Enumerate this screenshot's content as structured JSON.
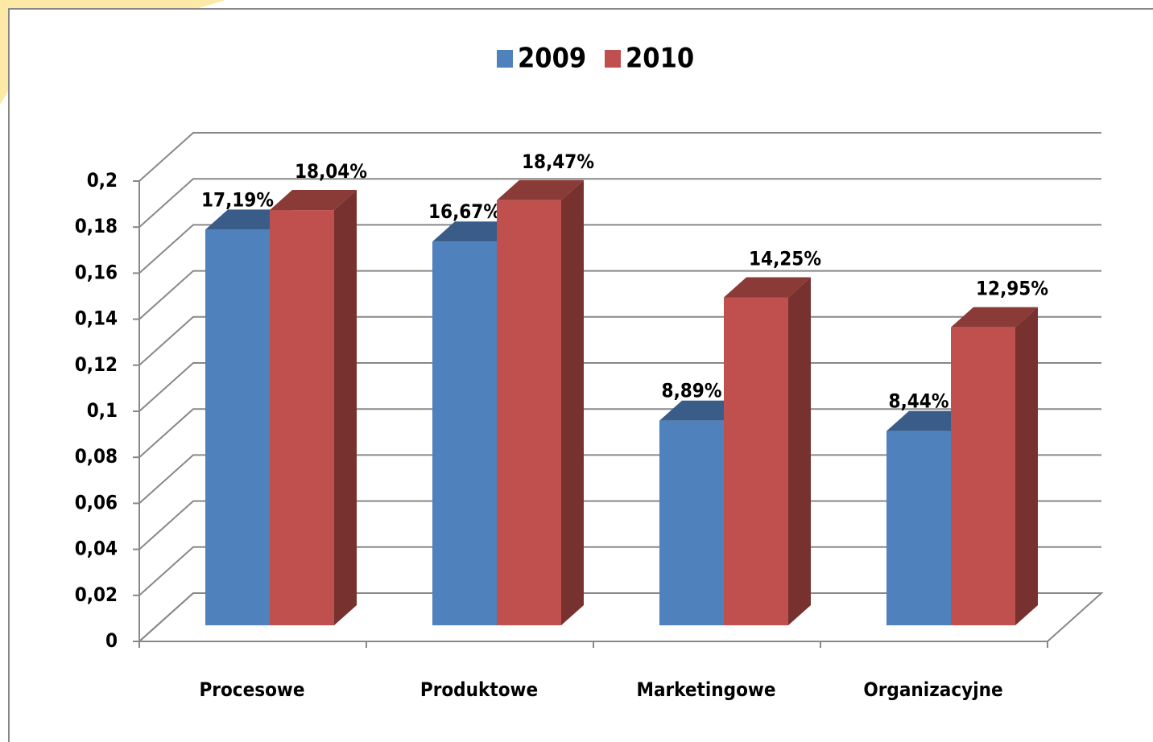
{
  "chart_data": {
    "type": "bar3d",
    "categories": [
      "Procesowe",
      "Produktowe",
      "Marketingowe",
      "Organizacyjne"
    ],
    "series": [
      {
        "name": "2009",
        "color": "#4f81bd",
        "values": [
          0.1719,
          0.1667,
          0.0889,
          0.0844
        ],
        "value_labels": [
          "17,19%",
          "16,67%",
          "8,89%",
          "8,44%"
        ]
      },
      {
        "name": "2010",
        "color": "#c0504d",
        "values": [
          0.1804,
          0.1847,
          0.1425,
          0.1295
        ],
        "value_labels": [
          "18,04%",
          "18,47%",
          "14,25%",
          "12,95%"
        ]
      }
    ],
    "ylim": [
      0,
      0.2
    ],
    "yticks": [
      0,
      {
        "value": 0.02,
        "label": "0,02"
      },
      {
        "value": 0.04,
        "label": "0,04"
      },
      {
        "value": 0.06,
        "label": "0,06"
      },
      {
        "value": 0.08,
        "label": "0,08"
      },
      {
        "value": 0.1,
        "label": "0,1"
      },
      {
        "value": 0.12,
        "label": "0,12"
      },
      {
        "value": 0.14,
        "label": "0,14"
      },
      {
        "value": 0.16,
        "label": "0,16"
      },
      {
        "value": 0.18,
        "label": "0,18"
      },
      {
        "value": 0.2,
        "label": "0,2"
      }
    ],
    "grid": true,
    "legend": "top"
  }
}
